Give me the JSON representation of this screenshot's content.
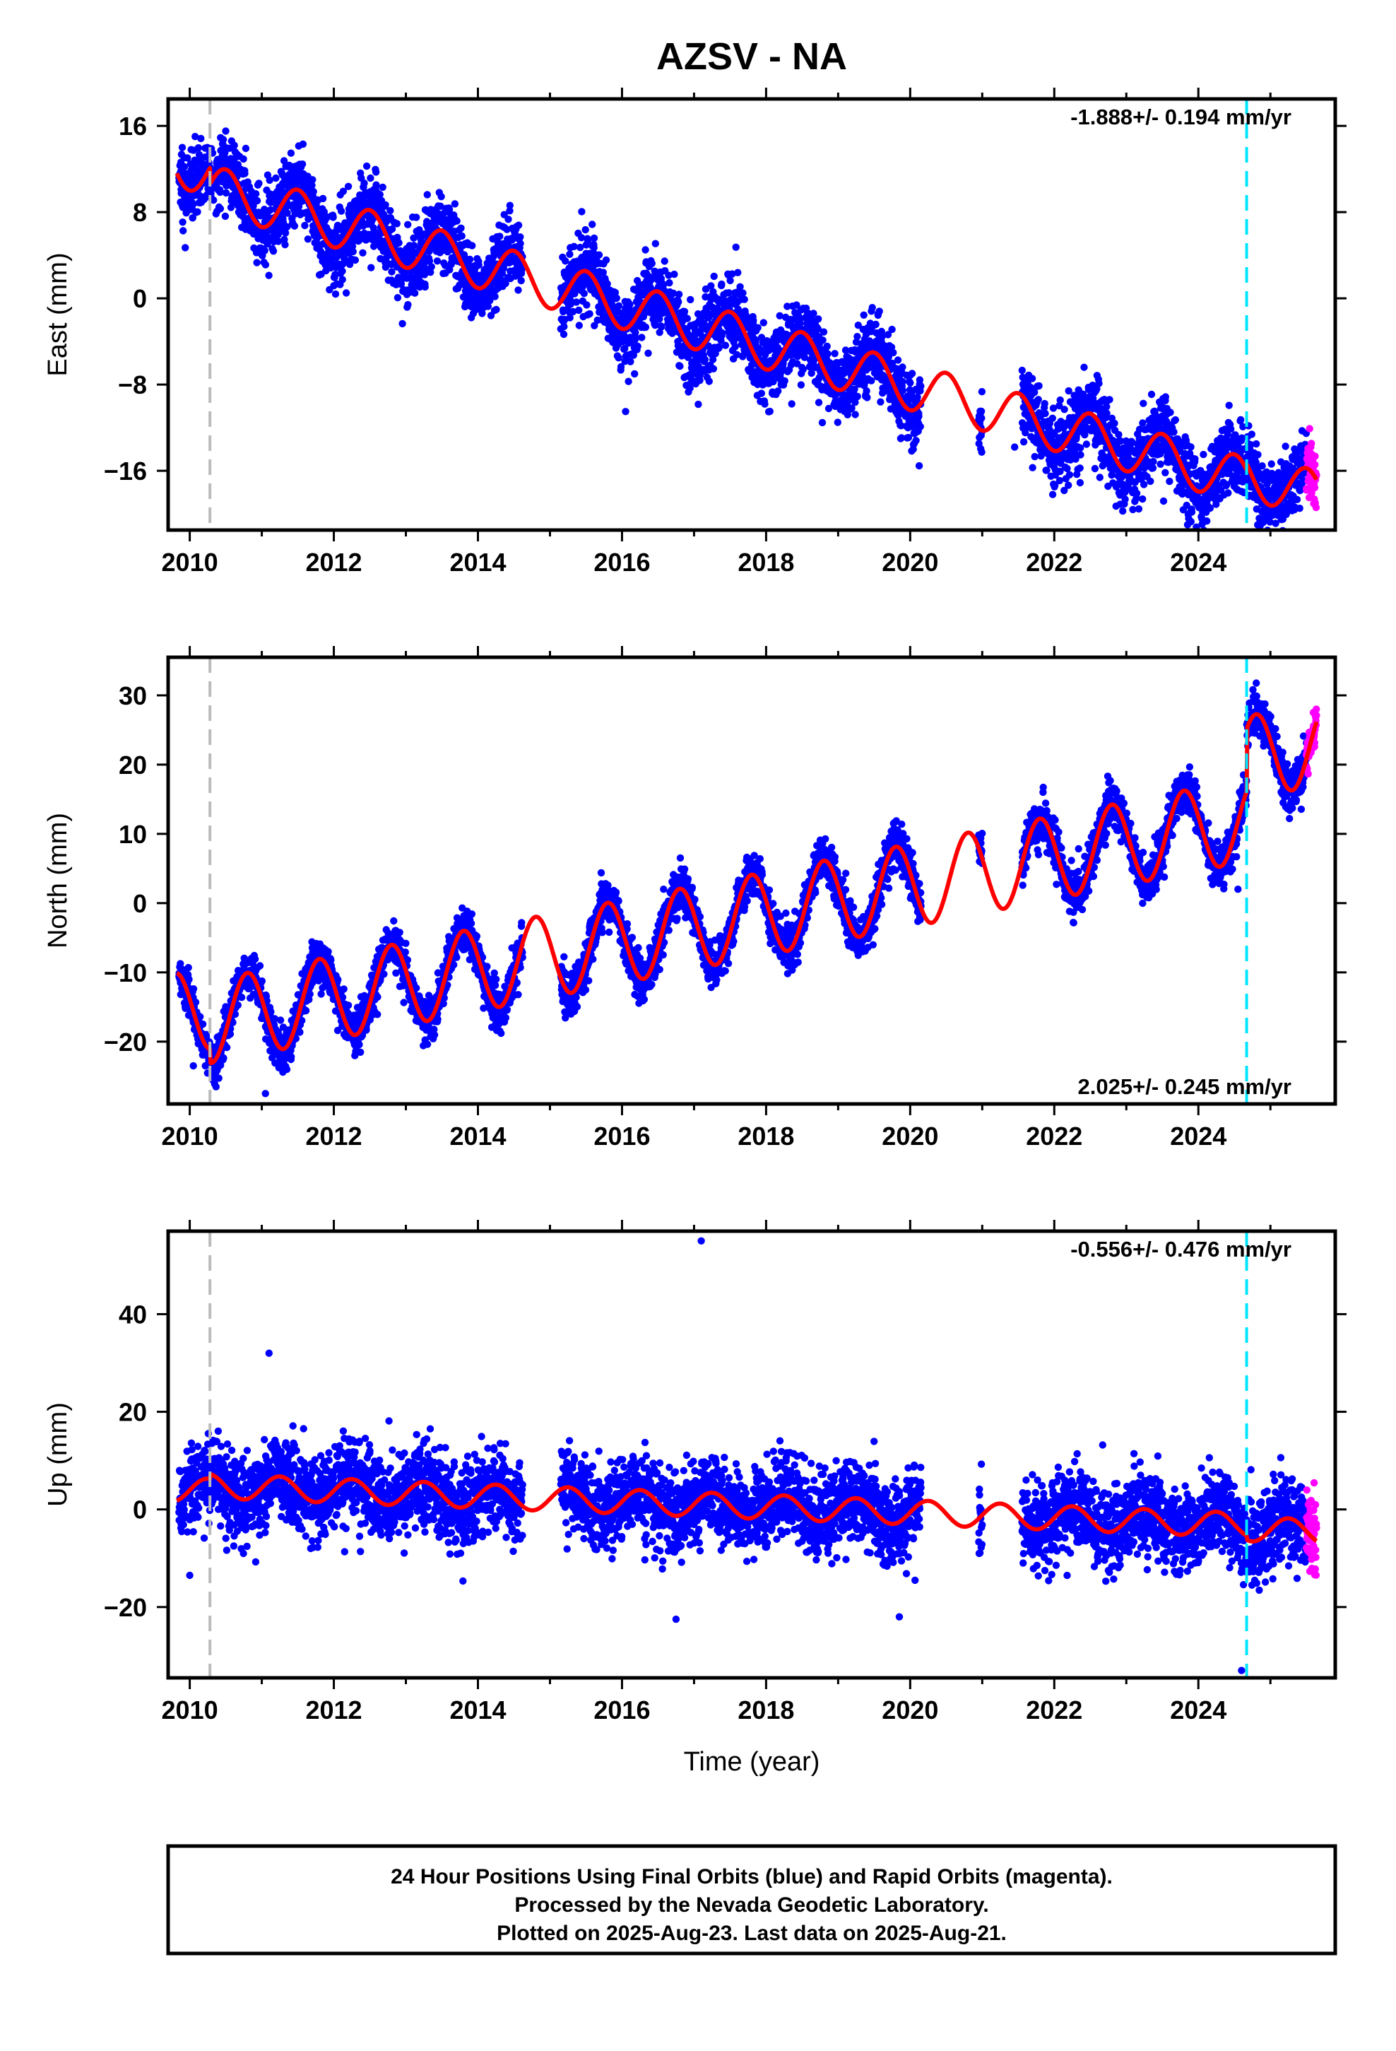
{
  "title": "AZSV - NA",
  "xlabel": "Time (year)",
  "caption": [
    "24 Hour Positions Using Final Orbits (blue) and Rapid Orbits (magenta).",
    "Processed by the Nevada Geodetic Laboratory.",
    "Plotted on 2025-Aug-23. Last data on 2025-Aug-21."
  ],
  "colors": {
    "final": "#0000ff",
    "rapid": "#ff00ff",
    "model": "#ff0000",
    "equip_change": "#bbbbbb",
    "eq_event": "#00e5ff"
  },
  "chart_data": [
    {
      "type": "scatter",
      "component": "east",
      "ylabel": "East (mm)",
      "rate": "-1.888+/- 0.194 mm/yr",
      "rate_position": "top-right",
      "xlim": [
        2009.7,
        2025.9
      ],
      "ylim": [
        -21.5,
        18.5
      ],
      "xticks": [
        2010,
        2012,
        2014,
        2016,
        2018,
        2020,
        2022,
        2024
      ],
      "yticks": [
        16,
        8,
        0,
        -8,
        -16
      ],
      "ytick_labels": [
        "16",
        "8",
        "0",
        "−8",
        "−16"
      ],
      "vertical_lines": [
        {
          "x": 2010.28,
          "color": "gray",
          "style": "dashed"
        },
        {
          "x": 2024.67,
          "color": "cyan",
          "style": "dashed"
        }
      ],
      "model": {
        "t0": 2018,
        "offset": -2.9,
        "rate": -1.888,
        "seasonal_amp": 2.2,
        "seasonal_phase": 0.25,
        "jumps": [
          {
            "t": 2010.28,
            "dy": -1.5
          },
          {
            "t": 2024.67,
            "dy": 0.6
          }
        ]
      },
      "gaps": [
        [
          2014.62,
          2015.15
        ],
        [
          2020.15,
          2020.95
        ],
        [
          2021.0,
          2021.55
        ]
      ],
      "scatter_sd": 1.7,
      "outliers": [
        {
          "x": 2016.05,
          "y": -10.5
        },
        {
          "x": 2023.85,
          "y": -21
        },
        {
          "x": 2021.45,
          "y": -13.8
        }
      ]
    },
    {
      "type": "scatter",
      "component": "north",
      "ylabel": "North (mm)",
      "rate": "2.025+/- 0.245 mm/yr",
      "rate_position": "bottom-right",
      "xlim": [
        2009.7,
        2025.9
      ],
      "ylim": [
        -29,
        35.5
      ],
      "xticks": [
        2010,
        2012,
        2014,
        2016,
        2018,
        2020,
        2022,
        2024
      ],
      "yticks": [
        30,
        20,
        10,
        0,
        -10,
        -20
      ],
      "ytick_labels": [
        "30",
        "20",
        "10",
        "0",
        "−10",
        "−20"
      ],
      "vertical_lines": [
        {
          "x": 2010.28,
          "color": "gray",
          "style": "dashed"
        },
        {
          "x": 2024.67,
          "color": "cyan",
          "style": "dashed"
        }
      ],
      "model": {
        "t0": 2018,
        "offset": 0.5,
        "rate": 2.025,
        "seasonal_amp": 6.0,
        "seasonal_phase": 0.55,
        "jumps": [
          {
            "t": 2010.28,
            "dy": -2.0
          },
          {
            "t": 2024.67,
            "dy": 9.0
          }
        ]
      },
      "gaps": [
        [
          2014.62,
          2015.15
        ],
        [
          2020.15,
          2020.95
        ],
        [
          2021.0,
          2021.55
        ]
      ],
      "scatter_sd": 1.6,
      "outliers": [
        {
          "x": 2011.05,
          "y": -27.5
        },
        {
          "x": 2010.05,
          "y": -23.5
        },
        {
          "x": 2024.55,
          "y": 2
        }
      ]
    },
    {
      "type": "scatter",
      "component": "up",
      "ylabel": "Up (mm)",
      "rate": "-0.556+/- 0.476 mm/yr",
      "rate_position": "top-right",
      "xlim": [
        2009.7,
        2025.9
      ],
      "ylim": [
        -34.5,
        57
      ],
      "xticks": [
        2010,
        2012,
        2014,
        2016,
        2018,
        2020,
        2022,
        2024
      ],
      "yticks": [
        40,
        20,
        0,
        -20
      ],
      "ytick_labels": [
        "40",
        "20",
        "0",
        "−20"
      ],
      "vertical_lines": [
        {
          "x": 2010.28,
          "color": "gray",
          "style": "dashed"
        },
        {
          "x": 2024.67,
          "color": "cyan",
          "style": "dashed"
        }
      ],
      "model": {
        "t0": 2018,
        "offset": -0.5,
        "rate": -0.556,
        "seasonal_amp": 2.5,
        "seasonal_phase": 0.0,
        "jumps": [
          {
            "t": 2010.28,
            "dy": 1.0
          },
          {
            "t": 2024.67,
            "dy": -0.8
          }
        ]
      },
      "gaps": [
        [
          2014.62,
          2015.15
        ],
        [
          2020.15,
          2020.95
        ],
        [
          2021.0,
          2021.55
        ]
      ],
      "scatter_sd": 4.2,
      "outliers": [
        {
          "x": 2017.1,
          "y": 55
        },
        {
          "x": 2011.1,
          "y": 32
        },
        {
          "x": 2016.75,
          "y": -22.5
        },
        {
          "x": 2019.85,
          "y": -22
        },
        {
          "x": 2024.6,
          "y": -33
        },
        {
          "x": 2010.0,
          "y": -13.5
        }
      ]
    }
  ]
}
